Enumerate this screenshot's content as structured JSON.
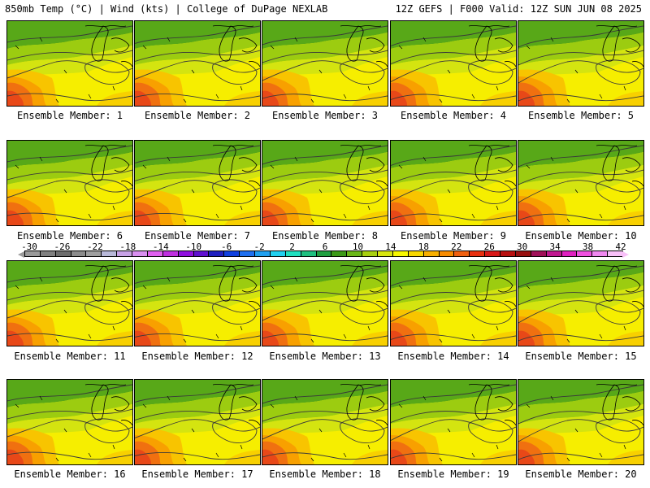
{
  "header": {
    "left": "850mb Temp (°C) | Wind (kts) | College of DuPage NEXLAB",
    "right": "12Z GEFS | F000 Valid: 12Z SUN JUN 08 2025"
  },
  "panels": [
    {
      "label": "Ensemble Member: 1"
    },
    {
      "label": "Ensemble Member: 2"
    },
    {
      "label": "Ensemble Member: 3"
    },
    {
      "label": "Ensemble Member: 4"
    },
    {
      "label": "Ensemble Member: 5"
    },
    {
      "label": "Ensemble Member: 6"
    },
    {
      "label": "Ensemble Member: 7"
    },
    {
      "label": "Ensemble Member: 8"
    },
    {
      "label": "Ensemble Member: 9"
    },
    {
      "label": "Ensemble Member: 10"
    },
    {
      "label": "Ensemble Member: 11"
    },
    {
      "label": "Ensemble Member: 12"
    },
    {
      "label": "Ensemble Member: 13"
    },
    {
      "label": "Ensemble Member: 14"
    },
    {
      "label": "Ensemble Member: 15"
    },
    {
      "label": "Ensemble Member: 16"
    },
    {
      "label": "Ensemble Member: 17"
    },
    {
      "label": "Ensemble Member: 18"
    },
    {
      "label": "Ensemble Member: 19"
    },
    {
      "label": "Ensemble Member: 20"
    }
  ],
  "colorbar": {
    "ticks": [
      "-30",
      "-26",
      "-22",
      "-18",
      "-14",
      "-10",
      "-6",
      "-2",
      "2",
      "6",
      "10",
      "14",
      "18",
      "22",
      "26",
      "30",
      "34",
      "38",
      "42"
    ],
    "colors": [
      "#9a9a9a",
      "#808080",
      "#6e6e6e",
      "#8c8c8c",
      "#a0a0a0",
      "#b9b9d9",
      "#c8a2e6",
      "#d98ff0",
      "#e060f0",
      "#c030e0",
      "#9010e0",
      "#6010d0",
      "#2020c0",
      "#1040e0",
      "#2070f0",
      "#20a0f0",
      "#20d0f0",
      "#20e0c0",
      "#20c080",
      "#20a040",
      "#3c9a18",
      "#6ab818",
      "#a8d010",
      "#d8e610",
      "#f8f800",
      "#f8d800",
      "#f8b000",
      "#f88c00",
      "#f06010",
      "#e83010",
      "#d81818",
      "#b81010",
      "#981010",
      "#a01058",
      "#c01890",
      "#e020c0",
      "#f050e0",
      "#f088f0",
      "#f8c0f8"
    ]
  }
}
